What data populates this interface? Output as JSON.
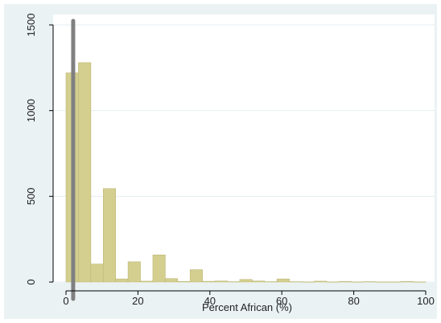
{
  "chart_data": {
    "type": "bar",
    "title": "",
    "xlabel": "Percent African (%)",
    "ylabel": "",
    "xlim": [
      0,
      100
    ],
    "ylim": [
      0,
      1500
    ],
    "x_ticks": [
      "0",
      "20",
      "40",
      "60",
      "80",
      "100"
    ],
    "y_ticks": [
      "0",
      "500",
      "1000",
      "1500"
    ],
    "bin_width": 3.45,
    "bin_starts": [
      0,
      3.45,
      6.9,
      10.35,
      13.8,
      17.25,
      20.7,
      24.15,
      27.6,
      31.05,
      34.5,
      37.95,
      41.4,
      44.85,
      48.3,
      51.75,
      55.2,
      58.65,
      62.1,
      65.55,
      69.0,
      72.45,
      75.9,
      79.35,
      82.8,
      86.25,
      89.7,
      93.15,
      96.6
    ],
    "values": [
      1220,
      1280,
      105,
      545,
      18,
      118,
      5,
      158,
      20,
      3,
      72,
      4,
      6,
      2,
      15,
      6,
      2,
      18,
      2,
      1,
      5,
      1,
      3,
      1,
      2,
      1,
      1,
      3,
      1
    ],
    "reference_line": {
      "x": 2,
      "orientation": "vertical"
    },
    "grid": true,
    "legend": "none",
    "colors": {
      "bar_fill": "#d4cf8e",
      "bar_stroke": "#bcb779",
      "reference_line": "#808080",
      "plot_bg": "#ffffff",
      "outer_bg": "#eaf2f3",
      "grid": "#e6eef0",
      "axis": "#000000"
    }
  }
}
